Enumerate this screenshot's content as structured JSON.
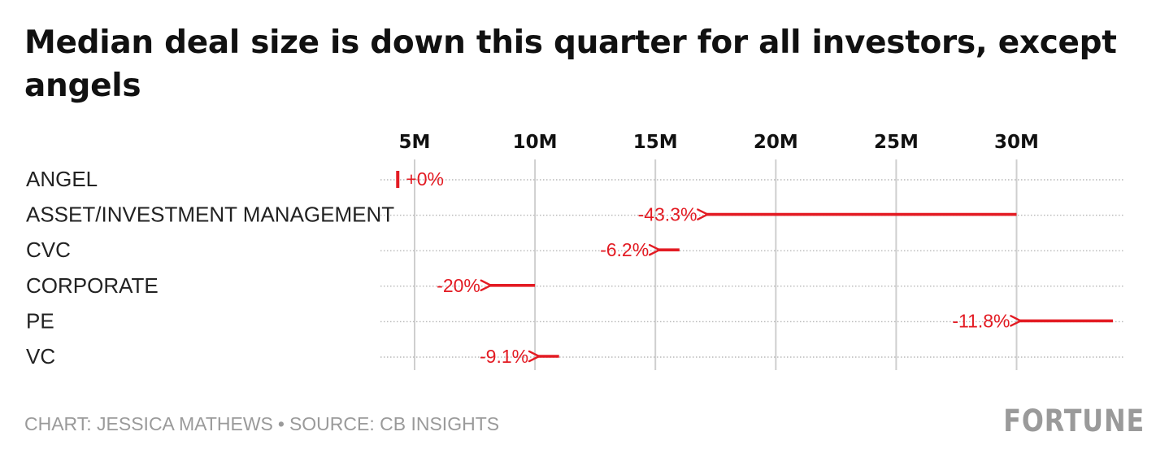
{
  "title": "Median deal size is down this quarter for all investors, except angels",
  "footer": {
    "chart_credit": "CHART: JESSICA MATHEWS",
    "separator": "•",
    "source": "SOURCE: CB INSIGHTS",
    "brand": "FORTUNE"
  },
  "colors": {
    "accent": "#e31b23",
    "gridline": "#cfcfcf",
    "muted_text": "#9a9a9a"
  },
  "chart_data": {
    "type": "arrow",
    "title": "Median deal size is down this quarter for all investors, except angels",
    "xlabel": "",
    "ylabel": "",
    "x_ticks": [
      5,
      10,
      15,
      20,
      25,
      30
    ],
    "x_tick_labels": [
      "5M",
      "10M",
      "15M",
      "20M",
      "25M",
      "30M"
    ],
    "xlim": [
      3.5,
      34.5
    ],
    "grid": true,
    "categories": [
      "ANGEL",
      "ASSET/INVESTMENT MANAGEMENT",
      "CVC",
      "CORPORATE",
      "PE",
      "VC"
    ],
    "series": [
      {
        "category": "ANGEL",
        "from": 4.3,
        "to": 4.3,
        "change_label": "+0%"
      },
      {
        "category": "ASSET/INVESTMENT MANAGEMENT",
        "from": 30.0,
        "to": 17.0,
        "change_label": "-43.3%"
      },
      {
        "category": "CVC",
        "from": 16.0,
        "to": 15.0,
        "change_label": "-6.2%"
      },
      {
        "category": "CORPORATE",
        "from": 10.0,
        "to": 8.0,
        "change_label": "-20%"
      },
      {
        "category": "PE",
        "from": 34.0,
        "to": 30.0,
        "change_label": "-11.8%"
      },
      {
        "category": "VC",
        "from": 11.0,
        "to": 10.0,
        "change_label": "-9.1%"
      }
    ]
  }
}
